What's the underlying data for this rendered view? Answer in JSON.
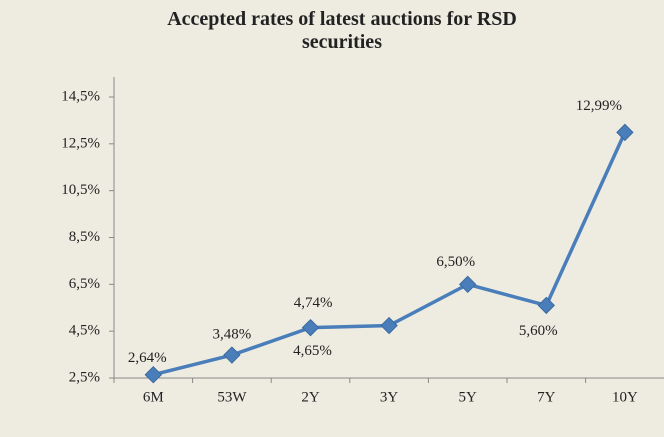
{
  "chart_data": {
    "type": "line",
    "title": "Accepted rates of latest auctions for RSD securities",
    "categories": [
      "6M",
      "53W",
      "2Y",
      "3Y",
      "5Y",
      "7Y",
      "10Y"
    ],
    "series": [
      {
        "name": "Accepted rate",
        "color": "#4a7ebb",
        "values": [
          2.64,
          3.48,
          4.65,
          4.74,
          6.5,
          5.6,
          12.99
        ],
        "value_labels": [
          "2,64%",
          "3,48%",
          "4,65%",
          "4,74%",
          "6,50%",
          "5,60%",
          "12,99%"
        ]
      }
    ],
    "ylim": [
      2.5,
      14.5
    ],
    "yticks": [
      {
        "value": 2.5,
        "label": "2,5%"
      },
      {
        "value": 4.5,
        "label": "4,5%"
      },
      {
        "value": 6.5,
        "label": "6,5%"
      },
      {
        "value": 8.5,
        "label": "8,5%"
      },
      {
        "value": 10.5,
        "label": "10,5%"
      },
      {
        "value": 12.5,
        "label": "12,5%"
      },
      {
        "value": 14.5,
        "label": "14,5%"
      }
    ],
    "grid": false
  }
}
